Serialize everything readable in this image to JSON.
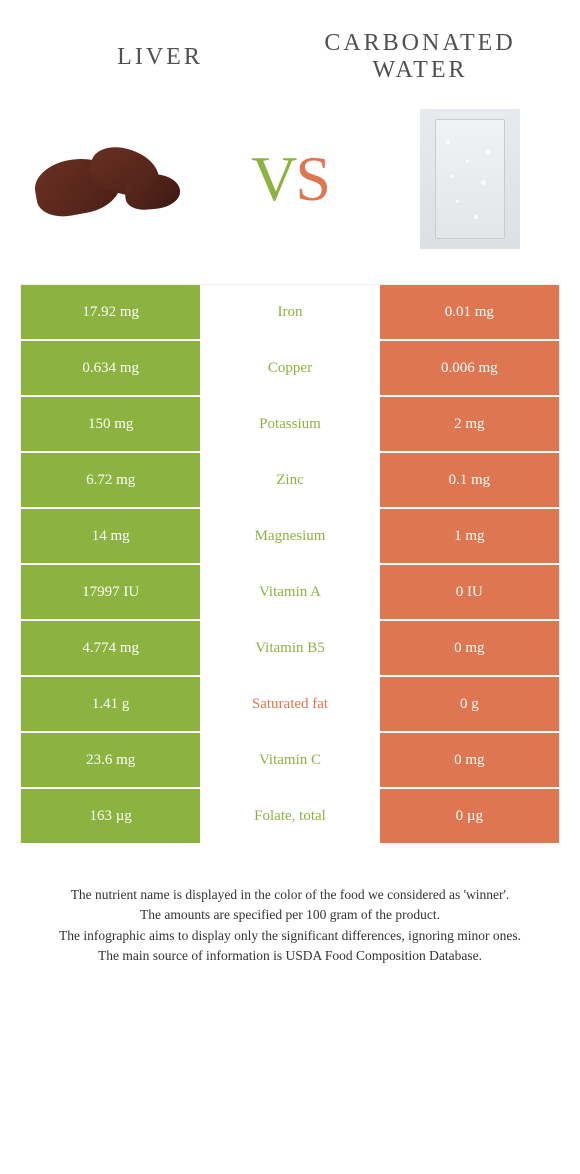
{
  "header": {
    "left_title": "LIVER",
    "right_title_line1": "CARBONATED",
    "right_title_line2": "WATER",
    "vs_v": "V",
    "vs_s": "S"
  },
  "colors": {
    "green": "#8cb33f",
    "orange": "#de7651",
    "background": "#ffffff",
    "text": "#333333"
  },
  "table": {
    "rows": [
      {
        "left": "17.92 mg",
        "label": "Iron",
        "right": "0.01 mg",
        "winner": "green"
      },
      {
        "left": "0.634 mg",
        "label": "Copper",
        "right": "0.006 mg",
        "winner": "green"
      },
      {
        "left": "150 mg",
        "label": "Potassium",
        "right": "2 mg",
        "winner": "green"
      },
      {
        "left": "6.72 mg",
        "label": "Zinc",
        "right": "0.1 mg",
        "winner": "green"
      },
      {
        "left": "14 mg",
        "label": "Magnesium",
        "right": "1 mg",
        "winner": "green"
      },
      {
        "left": "17997 IU",
        "label": "Vitamin A",
        "right": "0 IU",
        "winner": "green"
      },
      {
        "left": "4.774 mg",
        "label": "Vitamin B5",
        "right": "0 mg",
        "winner": "green"
      },
      {
        "left": "1.41 g",
        "label": "Saturated fat",
        "right": "0 g",
        "winner": "orange"
      },
      {
        "left": "23.6 mg",
        "label": "Vitamin C",
        "right": "0 mg",
        "winner": "green"
      },
      {
        "left": "163 µg",
        "label": "Folate, total",
        "right": "0 µg",
        "winner": "green"
      }
    ]
  },
  "footer": {
    "line1": "The nutrient name is displayed in the color of the food we considered as 'winner'.",
    "line2": "The amounts are specified per 100 gram of the product.",
    "line3": "The infographic aims to display only the significant differences, ignoring minor ones.",
    "line4": "The main source of information is USDA Food Composition Database."
  }
}
